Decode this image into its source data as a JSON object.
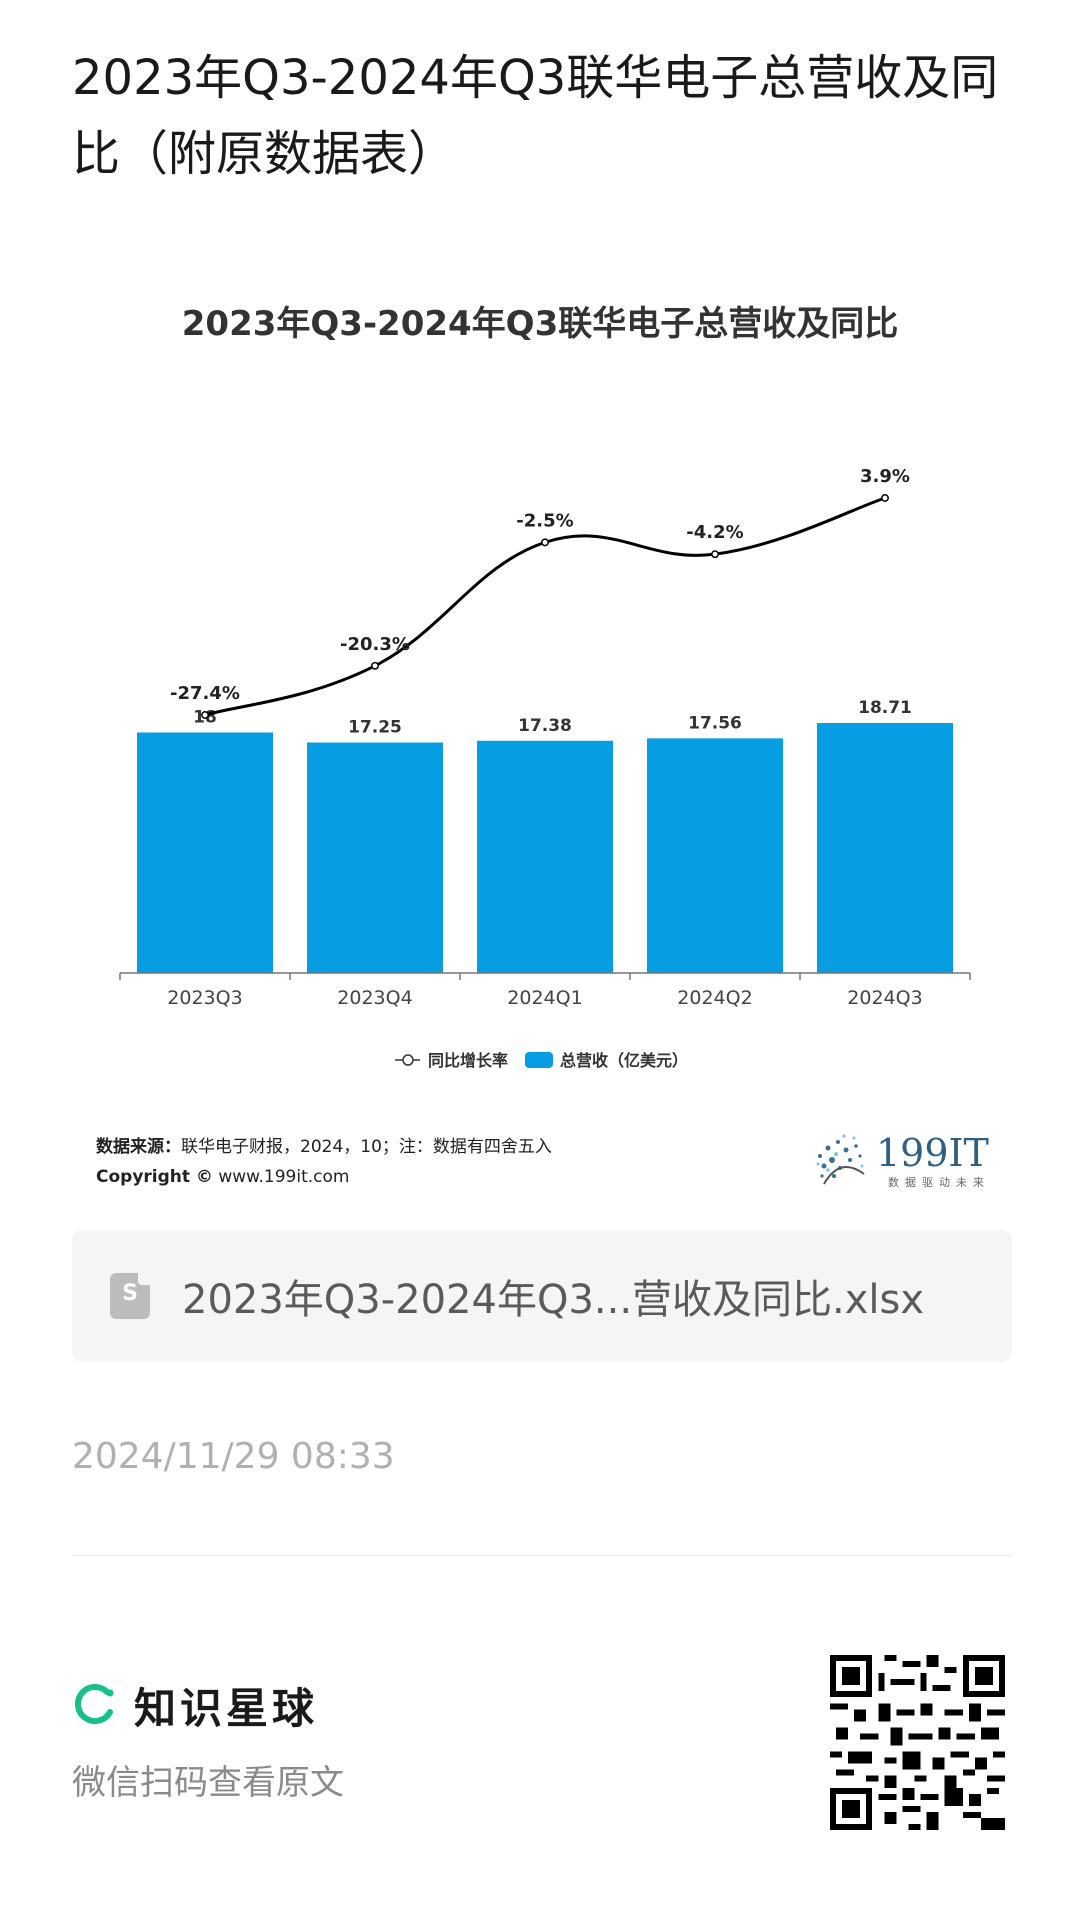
{
  "page": {
    "title": "2023年Q3-2024年Q3联华电子总营收及同比（附原数据表）"
  },
  "chart_data": {
    "type": "bar",
    "title": "2023年Q3-2024年Q3联华电子总营收及同比",
    "categories": [
      "2023Q3",
      "2023Q4",
      "2024Q1",
      "2024Q2",
      "2024Q3"
    ],
    "series": [
      {
        "name": "总营收（亿美元）",
        "type": "bar",
        "values": [
          18,
          17.25,
          17.38,
          17.56,
          18.71
        ],
        "labels": [
          "18",
          "17.25",
          "17.38",
          "17.56",
          "18.71"
        ],
        "color": "#069de3"
      },
      {
        "name": "同比增长率",
        "type": "line",
        "values": [
          -27.4,
          -20.3,
          -2.5,
          -4.2,
          3.9
        ],
        "labels": [
          "-27.4%",
          "-20.3%",
          "-2.5%",
          "-4.2%",
          "3.9%"
        ],
        "color": "#000000"
      }
    ],
    "legend": {
      "position": "bottom"
    },
    "grid": false
  },
  "source": {
    "label": "数据来源：",
    "text": "联华电子财报，2024，10；注：数据有四舍五入",
    "copyright_label": "Copyright ©",
    "copyright_site": "www.199it.com"
  },
  "brand": {
    "name": "199IT",
    "tagline": "数据驱动未来"
  },
  "attachment": {
    "icon": "spreadsheet-file-icon",
    "icon_letter": "S",
    "file_name": "2023年Q3-2024年Q3...营收及同比.xlsx"
  },
  "timestamp": "2024/11/29 08:33",
  "footer": {
    "planet_name": "知识星球",
    "scan_hint": "微信扫码查看原文"
  },
  "colors": {
    "bar": "#069de3",
    "planet_accent": "#17c08b"
  }
}
